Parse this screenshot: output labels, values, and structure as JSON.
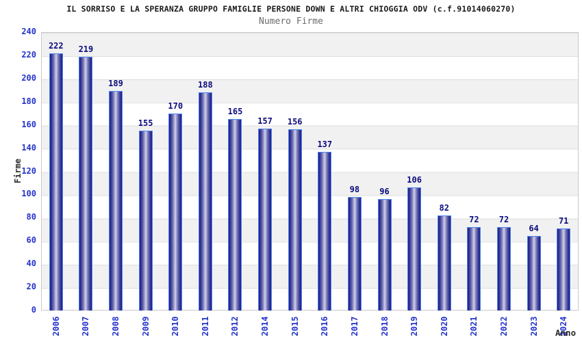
{
  "chart_data": {
    "type": "bar",
    "title": "IL SORRISO E LA SPERANZA GRUPPO FAMIGLIE PERSONE DOWN E ALTRI CHIOGGIA ODV (c.f.91014060270)",
    "subtitle": "Numero Firme",
    "xlabel": "Anno",
    "ylabel": "Firme",
    "categories": [
      "2006",
      "2007",
      "2008",
      "2009",
      "2010",
      "2011",
      "2012",
      "2014",
      "2015",
      "2016",
      "2017",
      "2018",
      "2019",
      "2020",
      "2021",
      "2022",
      "2023",
      "2024"
    ],
    "values": [
      222,
      219,
      189,
      155,
      170,
      188,
      165,
      157,
      156,
      137,
      98,
      96,
      106,
      82,
      72,
      72,
      64,
      71
    ],
    "ylim": [
      0,
      240
    ],
    "ytick_step": 20,
    "grid": "alternating horizontal gray/white bands every 20 units",
    "legend_position": "none",
    "colors": {
      "bar_edge": "#1f1f87",
      "bar_mid": "#8b8bc4",
      "bar_highlight": "#c9c9e6",
      "bar_border": "#4b87ef",
      "tick_label": "#2433cc",
      "value_label": "#0b0b7e",
      "band_gray": "#f1f1f1",
      "band_white": "#ffffff",
      "plot_border": "#c9c9c9",
      "title_color": "#1a1a1a",
      "subtitle_color": "#6b6b6b",
      "axis_title_color": "#2b2b2b"
    }
  }
}
